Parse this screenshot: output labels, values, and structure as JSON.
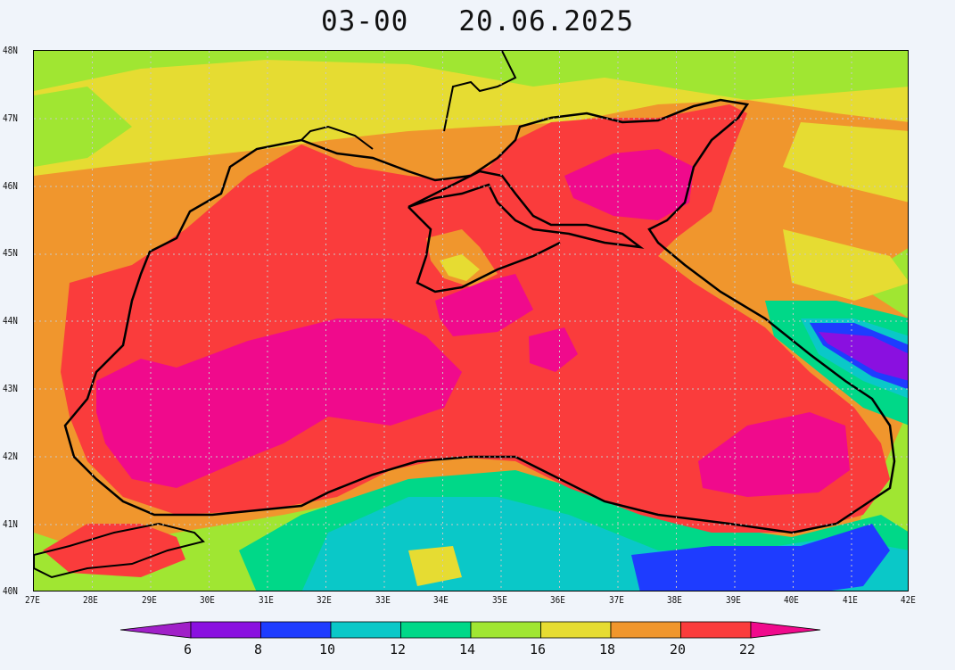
{
  "title": {
    "time": "03-00",
    "date": "20.06.2025"
  },
  "map": {
    "region": "Black Sea",
    "parameter": "sea surface temperature",
    "lon_range": [
      27,
      42
    ],
    "lat_range": [
      40,
      48
    ],
    "lon_labels": [
      "27E",
      "28E",
      "29E",
      "30E",
      "31E",
      "32E",
      "33E",
      "34E",
      "35E",
      "36E",
      "37E",
      "38E",
      "39E",
      "40E",
      "41E",
      "42E"
    ],
    "lat_labels": [
      "40N",
      "41N",
      "42N",
      "43N",
      "44N",
      "45N",
      "46N",
      "47N",
      "48N"
    ],
    "grid": true,
    "coastline_color": "#000000"
  },
  "colorbar": {
    "levels": [
      "6",
      "8",
      "10",
      "12",
      "14",
      "16",
      "18",
      "20",
      "22"
    ],
    "colors": [
      "#a020c8",
      "#8a10e0",
      "#1e3cff",
      "#0ac8c8",
      "#00d888",
      "#a0e632",
      "#e6dc32",
      "#f0962d",
      "#fa3c3c",
      "#f00a8c"
    ],
    "extend": "both"
  }
}
